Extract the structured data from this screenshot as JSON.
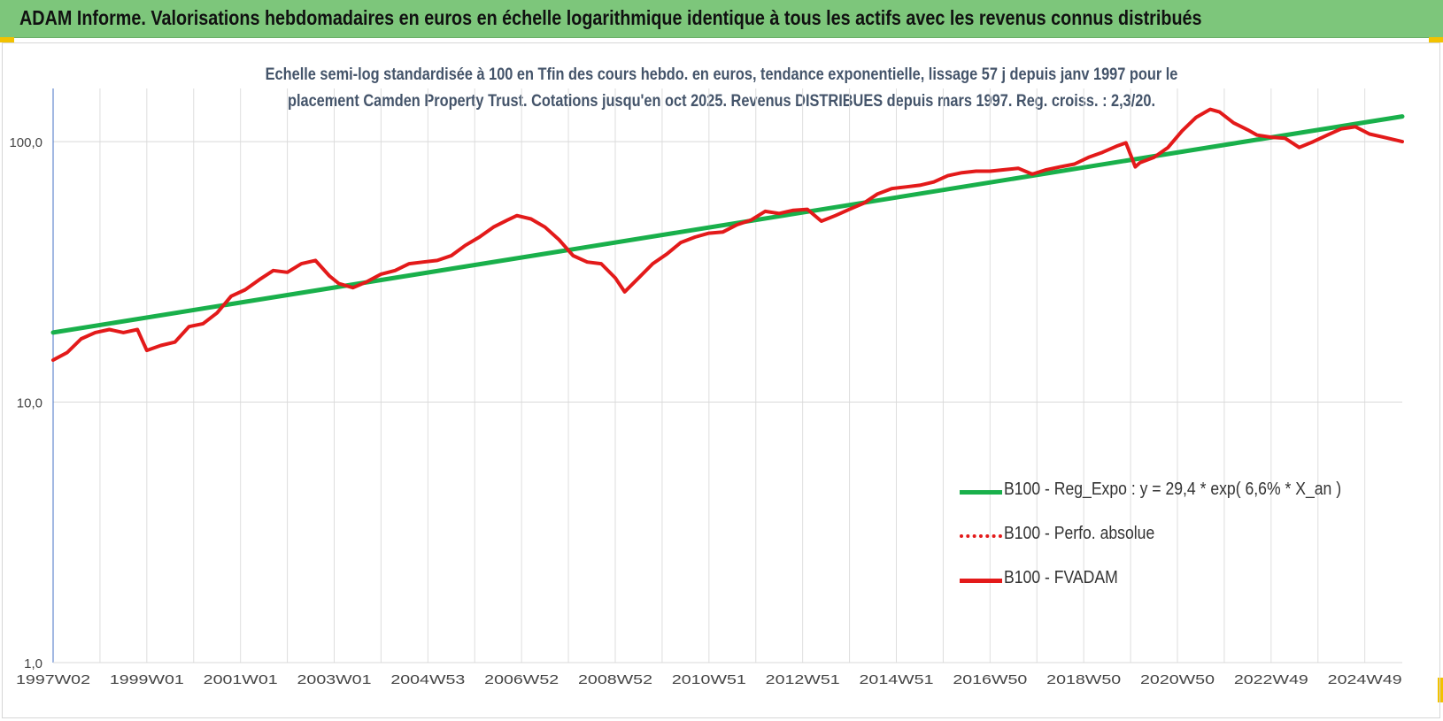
{
  "header": {
    "title": "ADAM Informe. Valorisations hebdomadaires en euros en échelle logarithmique identique à tous les actifs avec les revenus connus distribués"
  },
  "chart_data": {
    "type": "line",
    "title_lines": [
      "Echelle semi-log standardisée à 100 en Tfin des cours hebdo. en euros, tendance exponentielle, lissage 57 j depuis janv 1997 pour le",
      "placement Camden Property Trust. Cotations jusqu'en oct 2025. Revenus DISTRIBUES depuis mars 1997.  Reg. croiss. : 2,3/20."
    ],
    "y_scale": "log",
    "ylim": [
      1,
      160
    ],
    "y_ticks": [
      {
        "value": 1,
        "label": "1,0"
      },
      {
        "value": 10,
        "label": "10,0"
      },
      {
        "value": 100,
        "label": "100,0"
      }
    ],
    "x_range": [
      1997.0,
      2025.8
    ],
    "x_ticks": [
      {
        "value": 1997.0,
        "label": "1997W02"
      },
      {
        "value": 1999.0,
        "label": "1999W01"
      },
      {
        "value": 2001.0,
        "label": "2001W01"
      },
      {
        "value": 2003.0,
        "label": "2003W01"
      },
      {
        "value": 2005.0,
        "label": "2004W53"
      },
      {
        "value": 2007.0,
        "label": "2006W52"
      },
      {
        "value": 2009.0,
        "label": "2008W52"
      },
      {
        "value": 2011.0,
        "label": "2010W51"
      },
      {
        "value": 2013.0,
        "label": "2012W51"
      },
      {
        "value": 2015.0,
        "label": "2014W51"
      },
      {
        "value": 2017.0,
        "label": "2016W50"
      },
      {
        "value": 2019.0,
        "label": "2018W50"
      },
      {
        "value": 2021.0,
        "label": "2020W50"
      },
      {
        "value": 2023.0,
        "label": "2022W49"
      },
      {
        "value": 2025.0,
        "label": "2024W49"
      }
    ],
    "grid": true,
    "legend_position": "lower-right",
    "series": [
      {
        "name": "B100 - Reg_Expo : y = 29,4 * exp( 6,6% *  X_an )",
        "color": "#19b04b",
        "style": "solid",
        "x": [
          1997.0,
          2025.8
        ],
        "y": [
          18.5,
          125
        ]
      },
      {
        "name": "B100 - Perfo. absolue",
        "color": "#e31a1a",
        "style": "dotted",
        "x": [],
        "y": []
      },
      {
        "name": "B100 - FVADAM",
        "color": "#e31a1a",
        "style": "solid",
        "x": [
          1997.0,
          1997.3,
          1997.6,
          1997.9,
          1998.2,
          1998.5,
          1998.8,
          1999.0,
          1999.3,
          1999.6,
          1999.9,
          2000.2,
          2000.5,
          2000.8,
          2001.1,
          2001.4,
          2001.7,
          2002.0,
          2002.3,
          2002.6,
          2002.9,
          2003.1,
          2003.4,
          2003.7,
          2004.0,
          2004.3,
          2004.6,
          2004.9,
          2005.2,
          2005.5,
          2005.8,
          2006.1,
          2006.4,
          2006.7,
          2006.9,
          2007.2,
          2007.5,
          2007.8,
          2008.1,
          2008.4,
          2008.7,
          2009.0,
          2009.2,
          2009.5,
          2009.8,
          2010.1,
          2010.4,
          2010.7,
          2011.0,
          2011.3,
          2011.6,
          2011.9,
          2012.2,
          2012.5,
          2012.8,
          2013.1,
          2013.4,
          2013.7,
          2014.0,
          2014.3,
          2014.6,
          2014.9,
          2015.2,
          2015.5,
          2015.8,
          2016.1,
          2016.4,
          2016.7,
          2017.0,
          2017.3,
          2017.6,
          2017.9,
          2018.2,
          2018.5,
          2018.8,
          2019.1,
          2019.4,
          2019.7,
          2019.9,
          2020.1,
          2020.2,
          2020.5,
          2020.8,
          2021.1,
          2021.4,
          2021.7,
          2021.9,
          2022.2,
          2022.5,
          2022.7,
          2023.0,
          2023.3,
          2023.6,
          2023.9,
          2024.2,
          2024.5,
          2024.8,
          2025.1,
          2025.4,
          2025.8
        ],
        "y": [
          14.5,
          15.5,
          17.5,
          18.5,
          19.0,
          18.5,
          19.0,
          15.8,
          16.5,
          17.0,
          19.5,
          20.0,
          22.0,
          25.5,
          27.0,
          29.5,
          32.0,
          31.5,
          34.0,
          35.0,
          30.5,
          28.5,
          27.5,
          29.0,
          31.0,
          32.0,
          34.0,
          34.5,
          35.0,
          36.5,
          40.0,
          43.0,
          47.0,
          50.0,
          52.0,
          50.5,
          47.0,
          42.0,
          36.5,
          34.5,
          34.0,
          30.0,
          26.5,
          30.0,
          34.0,
          37.0,
          41.0,
          43.0,
          44.5,
          45.0,
          48.0,
          50.0,
          54.0,
          53.0,
          54.5,
          55.0,
          49.5,
          52.0,
          55.0,
          58.0,
          63.0,
          66.0,
          67.0,
          68.0,
          70.0,
          74.0,
          76.0,
          77.0,
          77.0,
          78.0,
          79.0,
          75.0,
          78.0,
          80.0,
          82.0,
          87.0,
          91.0,
          96.0,
          99.0,
          80.0,
          83.0,
          87.0,
          95.0,
          110.0,
          124.0,
          133.0,
          130.0,
          118.0,
          111.0,
          106.0,
          104.0,
          103.0,
          95.0,
          100.0,
          106.0,
          112.0,
          114.0,
          107.0,
          104.0,
          100.0
        ]
      }
    ]
  }
}
